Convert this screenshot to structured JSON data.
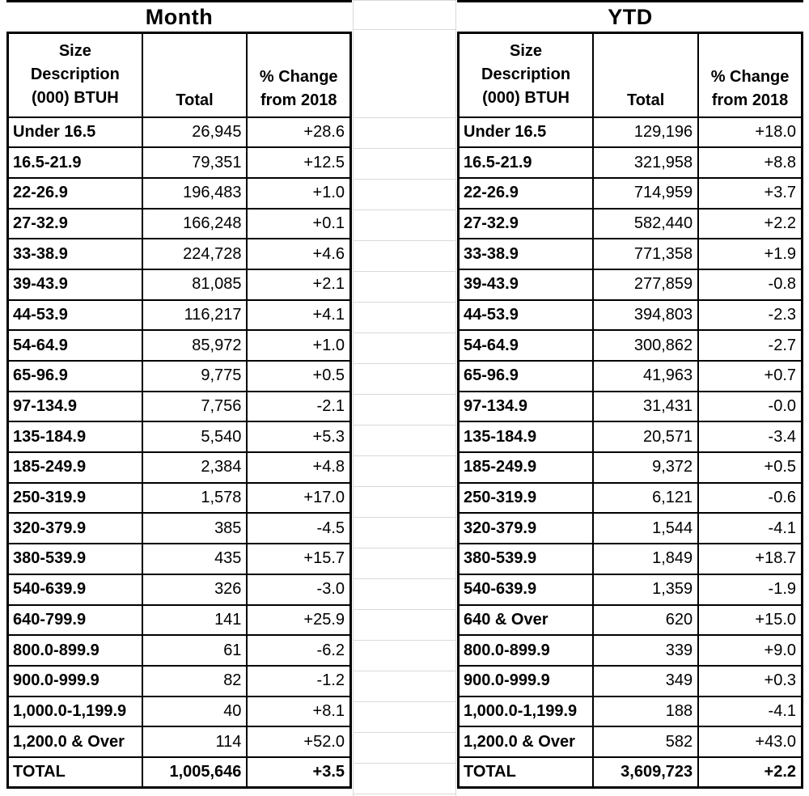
{
  "colors": {
    "border": "#000000",
    "gridline": "#d9d9d9",
    "text": "#000000",
    "background": "#ffffff"
  },
  "month_table": {
    "title": "Month",
    "columns": [
      "Size\nDescription\n(000) BTUH",
      "Total",
      "% Change\nfrom 2018"
    ],
    "rows": [
      {
        "size": "Under 16.5",
        "total": "26,945",
        "pct_change": "+28.6"
      },
      {
        "size": "16.5-21.9",
        "total": "79,351",
        "pct_change": "+12.5"
      },
      {
        "size": "22-26.9",
        "total": "196,483",
        "pct_change": "+1.0"
      },
      {
        "size": "27-32.9",
        "total": "166,248",
        "pct_change": "+0.1"
      },
      {
        "size": "33-38.9",
        "total": "224,728",
        "pct_change": "+4.6"
      },
      {
        "size": "39-43.9",
        "total": "81,085",
        "pct_change": "+2.1"
      },
      {
        "size": "44-53.9",
        "total": "116,217",
        "pct_change": "+4.1"
      },
      {
        "size": "54-64.9",
        "total": "85,972",
        "pct_change": "+1.0"
      },
      {
        "size": "65-96.9",
        "total": "9,775",
        "pct_change": "+0.5"
      },
      {
        "size": "97-134.9",
        "total": "7,756",
        "pct_change": "-2.1"
      },
      {
        "size": "135-184.9",
        "total": "5,540",
        "pct_change": "+5.3"
      },
      {
        "size": "185-249.9",
        "total": "2,384",
        "pct_change": "+4.8"
      },
      {
        "size": "250-319.9",
        "total": "1,578",
        "pct_change": "+17.0"
      },
      {
        "size": "320-379.9",
        "total": "385",
        "pct_change": "-4.5"
      },
      {
        "size": "380-539.9",
        "total": "435",
        "pct_change": "+15.7"
      },
      {
        "size": "540-639.9",
        "total": "326",
        "pct_change": "-3.0"
      },
      {
        "size": "640-799.9",
        "total": "141",
        "pct_change": "+25.9"
      },
      {
        "size": "800.0-899.9",
        "total": "61",
        "pct_change": "-6.2"
      },
      {
        "size": "900.0-999.9",
        "total": "82",
        "pct_change": "-1.2"
      },
      {
        "size": "1,000.0-1,199.9",
        "total": "40",
        "pct_change": "+8.1"
      },
      {
        "size": "1,200.0 & Over",
        "total": "114",
        "pct_change": "+52.0"
      }
    ],
    "total_row": {
      "size": "TOTAL",
      "total": "1,005,646",
      "pct_change": "+3.5"
    }
  },
  "ytd_table": {
    "title": "YTD",
    "columns": [
      "Size\nDescription\n(000) BTUH",
      "Total",
      "% Change\nfrom 2018"
    ],
    "rows": [
      {
        "size": "Under 16.5",
        "total": "129,196",
        "pct_change": "+18.0"
      },
      {
        "size": "16.5-21.9",
        "total": "321,958",
        "pct_change": "+8.8"
      },
      {
        "size": "22-26.9",
        "total": "714,959",
        "pct_change": "+3.7"
      },
      {
        "size": "27-32.9",
        "total": "582,440",
        "pct_change": "+2.2"
      },
      {
        "size": "33-38.9",
        "total": "771,358",
        "pct_change": "+1.9"
      },
      {
        "size": "39-43.9",
        "total": "277,859",
        "pct_change": "-0.8"
      },
      {
        "size": "44-53.9",
        "total": "394,803",
        "pct_change": "-2.3"
      },
      {
        "size": "54-64.9",
        "total": "300,862",
        "pct_change": "-2.7"
      },
      {
        "size": "65-96.9",
        "total": "41,963",
        "pct_change": "+0.7"
      },
      {
        "size": "97-134.9",
        "total": "31,431",
        "pct_change": "-0.0"
      },
      {
        "size": "135-184.9",
        "total": "20,571",
        "pct_change": "-3.4"
      },
      {
        "size": "185-249.9",
        "total": "9,372",
        "pct_change": "+0.5"
      },
      {
        "size": "250-319.9",
        "total": "6,121",
        "pct_change": "-0.6"
      },
      {
        "size": "320-379.9",
        "total": "1,544",
        "pct_change": "-4.1"
      },
      {
        "size": "380-539.9",
        "total": "1,849",
        "pct_change": "+18.7"
      },
      {
        "size": "540-639.9",
        "total": "1,359",
        "pct_change": "-1.9"
      },
      {
        "size": "640 & Over",
        "total": "620",
        "pct_change": "+15.0"
      },
      {
        "size": "800.0-899.9",
        "total": "339",
        "pct_change": "+9.0"
      },
      {
        "size": "900.0-999.9",
        "total": "349",
        "pct_change": "+0.3"
      },
      {
        "size": "1,000.0-1,199.9",
        "total": "188",
        "pct_change": "-4.1"
      },
      {
        "size": "1,200.0 & Over",
        "total": "582",
        "pct_change": "+43.0"
      }
    ],
    "total_row": {
      "size": "TOTAL",
      "total": "3,609,723",
      "pct_change": "+2.2"
    }
  }
}
